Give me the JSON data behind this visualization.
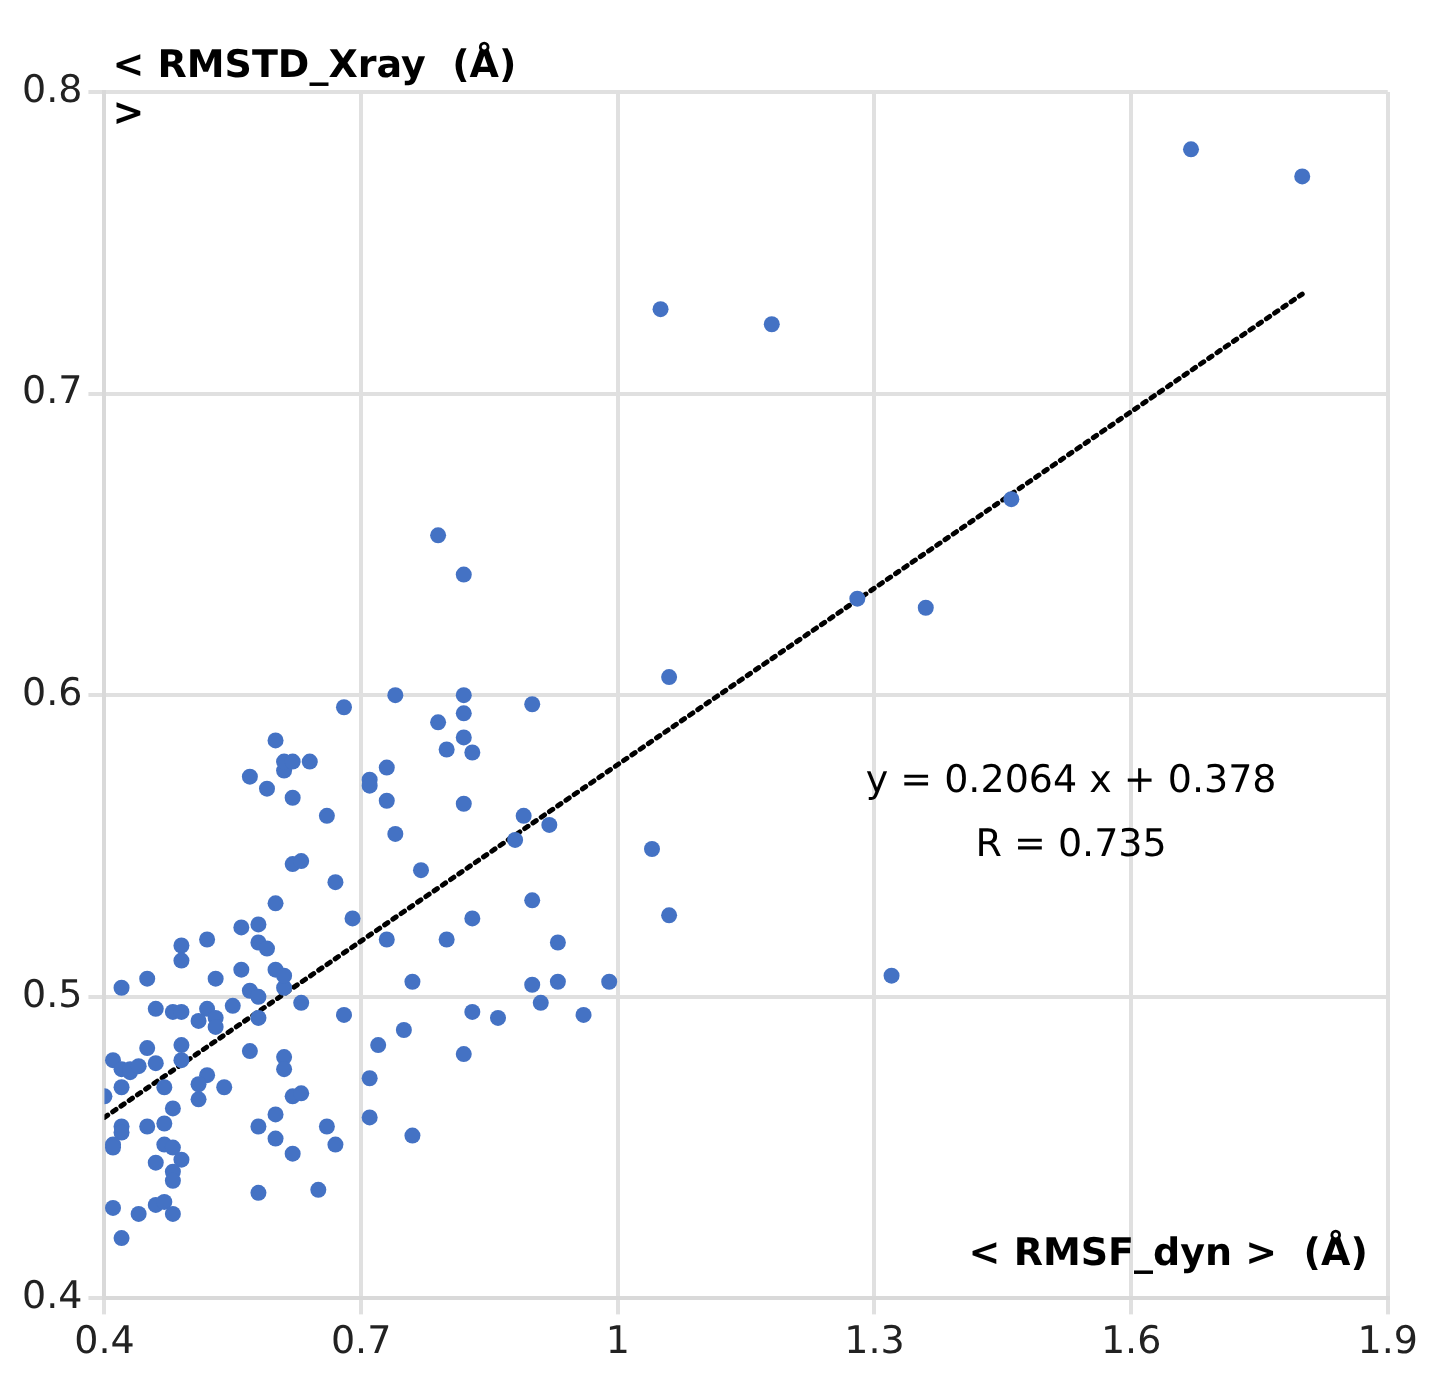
{
  "chart_data": {
    "type": "scatter",
    "xlabel": "< RMSF_dyn >  (Å)",
    "ylabel": "< RMSTD_Xray  (Å) >",
    "annotations": [
      "y = 0.2064 x + 0.378",
      "R = 0.735"
    ],
    "xlim": [
      0.4,
      1.9
    ],
    "xticks": [
      0.4,
      0.7,
      1,
      1.3,
      1.6,
      1.9
    ],
    "ylim": [
      0.4,
      0.8
    ],
    "yticks": [
      0.4,
      0.5,
      0.6,
      0.7,
      0.8
    ],
    "grid": true,
    "legend": false,
    "marker": "circle",
    "series": [
      {
        "color": "#4472c4",
        "x": [
          0.68,
          0.74,
          0.82,
          0.79,
          0.82,
          0.82,
          0.8,
          0.83,
          0.6,
          0.57,
          0.61,
          0.61,
          0.62,
          0.64,
          0.59,
          0.62,
          0.66,
          0.71,
          0.71,
          0.73,
          0.73,
          0.74,
          0.82,
          0.77,
          0.62,
          0.63,
          0.67,
          0.6,
          0.69,
          0.56,
          0.58,
          0.58,
          0.59,
          0.49,
          0.49,
          0.52,
          0.45,
          0.42,
          0.53,
          0.56,
          0.6,
          0.57,
          0.58,
          0.61,
          0.61,
          0.63,
          0.73,
          0.8,
          0.83,
          0.76,
          0.68,
          0.83,
          0.46,
          0.48,
          0.49,
          0.52,
          0.51,
          0.53,
          0.55,
          0.53,
          0.58,
          0.49,
          0.45,
          0.41,
          0.42,
          0.43,
          0.43,
          0.44,
          0.46,
          0.49,
          0.57,
          0.61,
          0.61,
          0.72,
          0.75,
          0.82,
          0.71,
          0.52,
          0.51,
          0.54,
          0.47,
          0.4,
          0.42,
          0.48,
          0.51,
          0.62,
          0.63,
          0.6,
          0.71,
          0.76,
          0.42,
          0.42,
          0.45,
          0.47,
          0.41,
          0.41,
          0.47,
          0.48,
          0.49,
          0.46,
          0.48,
          0.48,
          0.58,
          0.6,
          0.62,
          0.66,
          0.67,
          0.41,
          0.44,
          0.46,
          0.47,
          0.48,
          0.58,
          0.65,
          0.42,
          0.82,
          1.28,
          1.36,
          1.06,
          0.9,
          0.89,
          0.92,
          0.88,
          1.04,
          0.9,
          1.06,
          0.93,
          0.9,
          0.93,
          0.99,
          0.86,
          0.91,
          0.96,
          1.32,
          0.79,
          1.05,
          1.18,
          1.67,
          1.8,
          1.46
        ],
        "values": [
          0.596,
          0.6,
          0.6,
          0.591,
          0.594,
          0.586,
          0.582,
          0.581,
          0.585,
          0.573,
          0.575,
          0.578,
          0.578,
          0.578,
          0.569,
          0.566,
          0.56,
          0.572,
          0.57,
          0.576,
          0.565,
          0.554,
          0.564,
          0.542,
          0.544,
          0.545,
          0.538,
          0.531,
          0.526,
          0.523,
          0.524,
          0.518,
          0.516,
          0.517,
          0.512,
          0.519,
          0.506,
          0.503,
          0.506,
          0.509,
          0.509,
          0.502,
          0.5,
          0.503,
          0.507,
          0.498,
          0.519,
          0.519,
          0.526,
          0.505,
          0.494,
          0.495,
          0.496,
          0.495,
          0.495,
          0.496,
          0.492,
          0.493,
          0.497,
          0.49,
          0.493,
          0.484,
          0.483,
          0.479,
          0.476,
          0.475,
          0.476,
          0.477,
          0.478,
          0.479,
          0.482,
          0.48,
          0.476,
          0.484,
          0.489,
          0.481,
          0.473,
          0.474,
          0.471,
          0.47,
          0.47,
          0.467,
          0.47,
          0.463,
          0.466,
          0.467,
          0.468,
          0.461,
          0.46,
          0.454,
          0.457,
          0.455,
          0.457,
          0.458,
          0.451,
          0.45,
          0.451,
          0.45,
          0.446,
          0.445,
          0.442,
          0.439,
          0.457,
          0.453,
          0.448,
          0.457,
          0.451,
          0.43,
          0.428,
          0.431,
          0.432,
          0.428,
          0.435,
          0.436,
          0.42,
          0.64,
          0.632,
          0.629,
          0.606,
          0.597,
          0.56,
          0.557,
          0.552,
          0.549,
          0.532,
          0.527,
          0.518,
          0.504,
          0.505,
          0.505,
          0.493,
          0.498,
          0.494,
          0.507,
          0.653,
          0.728,
          0.723,
          0.781,
          0.772,
          0.665
        ]
      },
      {
        "type": "line",
        "color": "#000000",
        "line_style": "dotted",
        "marker": "none",
        "x": [
          0.4,
          1.8
        ],
        "values": [
          0.46,
          0.733
        ]
      }
    ]
  }
}
